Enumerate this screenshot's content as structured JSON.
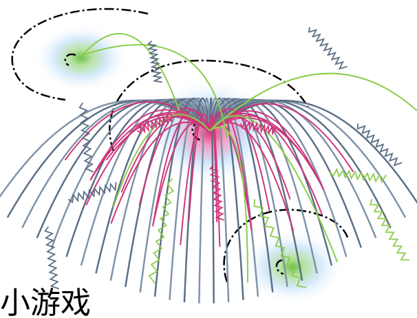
{
  "caption": {
    "text": "小游戏"
  }
}
